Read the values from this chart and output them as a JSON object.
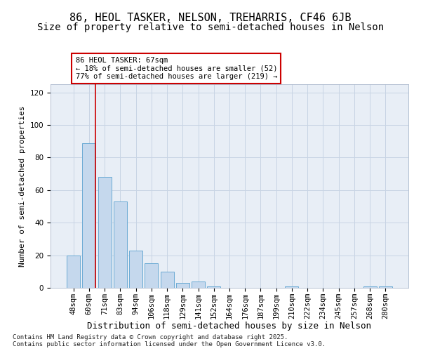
{
  "title": "86, HEOL TASKER, NELSON, TREHARRIS, CF46 6JB",
  "subtitle": "Size of property relative to semi-detached houses in Nelson",
  "xlabel": "Distribution of semi-detached houses by size in Nelson",
  "ylabel": "Number of semi-detached properties",
  "footer": "Contains HM Land Registry data © Crown copyright and database right 2025.\nContains public sector information licensed under the Open Government Licence v3.0.",
  "categories": [
    "48sqm",
    "60sqm",
    "71sqm",
    "83sqm",
    "94sqm",
    "106sqm",
    "118sqm",
    "129sqm",
    "141sqm",
    "152sqm",
    "164sqm",
    "176sqm",
    "187sqm",
    "199sqm",
    "210sqm",
    "222sqm",
    "234sqm",
    "245sqm",
    "257sqm",
    "268sqm",
    "280sqm"
  ],
  "values": [
    20,
    89,
    68,
    53,
    23,
    15,
    10,
    3,
    4,
    1,
    0,
    0,
    0,
    0,
    1,
    0,
    0,
    0,
    0,
    1,
    1
  ],
  "bar_color": "#c5d8ed",
  "bar_edge_color": "#6aaad4",
  "grid_color": "#c8d4e4",
  "background_color": "#e8eef6",
  "vline_color": "#cc0000",
  "vline_x": 1.42,
  "annotation_box_text": "86 HEOL TASKER: 67sqm\n← 18% of semi-detached houses are smaller (52)\n77% of semi-detached houses are larger (219) →",
  "annotation_box_color": "#cc0000",
  "ylim": [
    0,
    125
  ],
  "yticks": [
    0,
    20,
    40,
    60,
    80,
    100,
    120
  ],
  "title_fontsize": 11,
  "subtitle_fontsize": 10,
  "xlabel_fontsize": 9,
  "ylabel_fontsize": 8,
  "tick_fontsize": 7.5,
  "annotation_fontsize": 7.5,
  "footer_fontsize": 6.5
}
